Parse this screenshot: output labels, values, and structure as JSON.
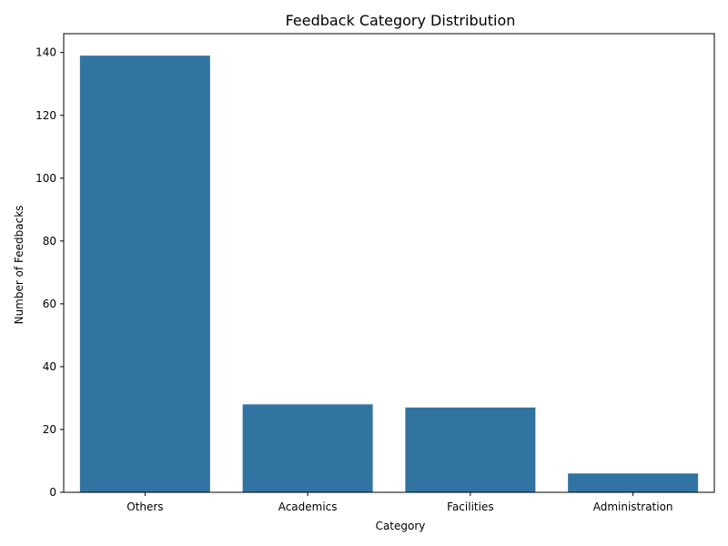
{
  "chart_data": {
    "type": "bar",
    "title": "Feedback Category Distribution",
    "xlabel": "Category",
    "ylabel": "Number of Feedbacks",
    "categories": [
      "Others",
      "Academics",
      "Facilities",
      "Administration"
    ],
    "values": [
      139,
      28,
      27,
      6
    ],
    "ylim": [
      0,
      146
    ],
    "yticks": [
      0,
      20,
      40,
      60,
      80,
      100,
      120,
      140
    ],
    "grid": false,
    "legend": "none",
    "bar_color": "#3274a1",
    "axes_color": "#000000"
  }
}
